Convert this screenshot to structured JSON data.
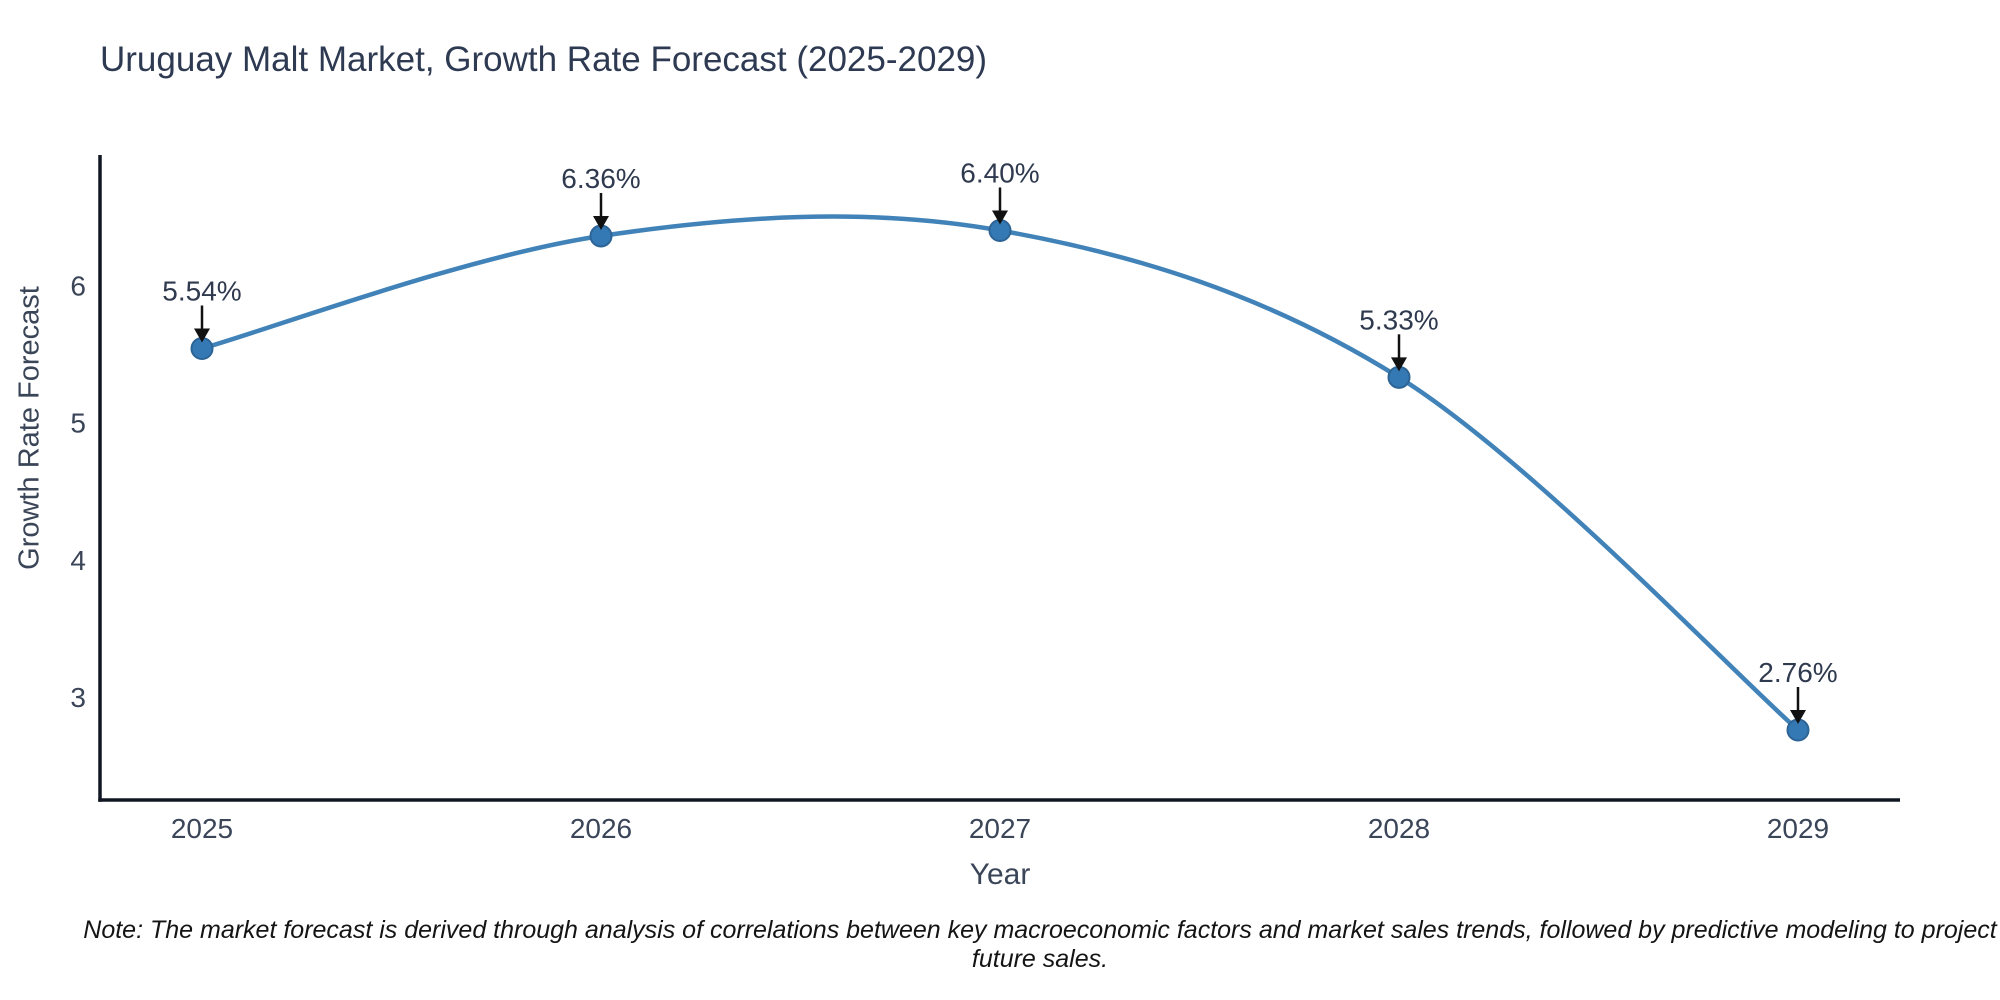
{
  "title": "Uruguay Malt Market, Growth Rate Forecast (2025-2029)",
  "note": "Note: The market forecast is derived through analysis of correlations between key macroeconomic factors and market sales trends, followed by predictive modeling to project future sales.",
  "chart_data": {
    "type": "line",
    "title": "Uruguay Malt Market, Growth Rate Forecast (2025-2029)",
    "categories": [
      "2025",
      "2026",
      "2027",
      "2028",
      "2029"
    ],
    "values": [
      5.54,
      6.36,
      6.4,
      5.33,
      2.76
    ],
    "point_labels": [
      "5.54%",
      "6.36%",
      "6.40%",
      "5.33%",
      "2.76%"
    ],
    "xlabel": "Year",
    "ylabel": "Growth Rate Forecast",
    "yticks": [
      3,
      4,
      5,
      6
    ],
    "ylim": [
      2.25,
      6.95
    ],
    "grid": false,
    "legend": "none",
    "line_shape": "spline",
    "annotation_arrows": true,
    "colors": {
      "line": "#4183b8",
      "marker": "#3579b4",
      "marker_edge": "#2d6496",
      "axis": "#111722",
      "tick_text": "#3a4558",
      "title_text": "#2e3a52",
      "annotation_text": "#2f3a4e",
      "arrow": "#111111",
      "note_text": "#141414"
    }
  }
}
